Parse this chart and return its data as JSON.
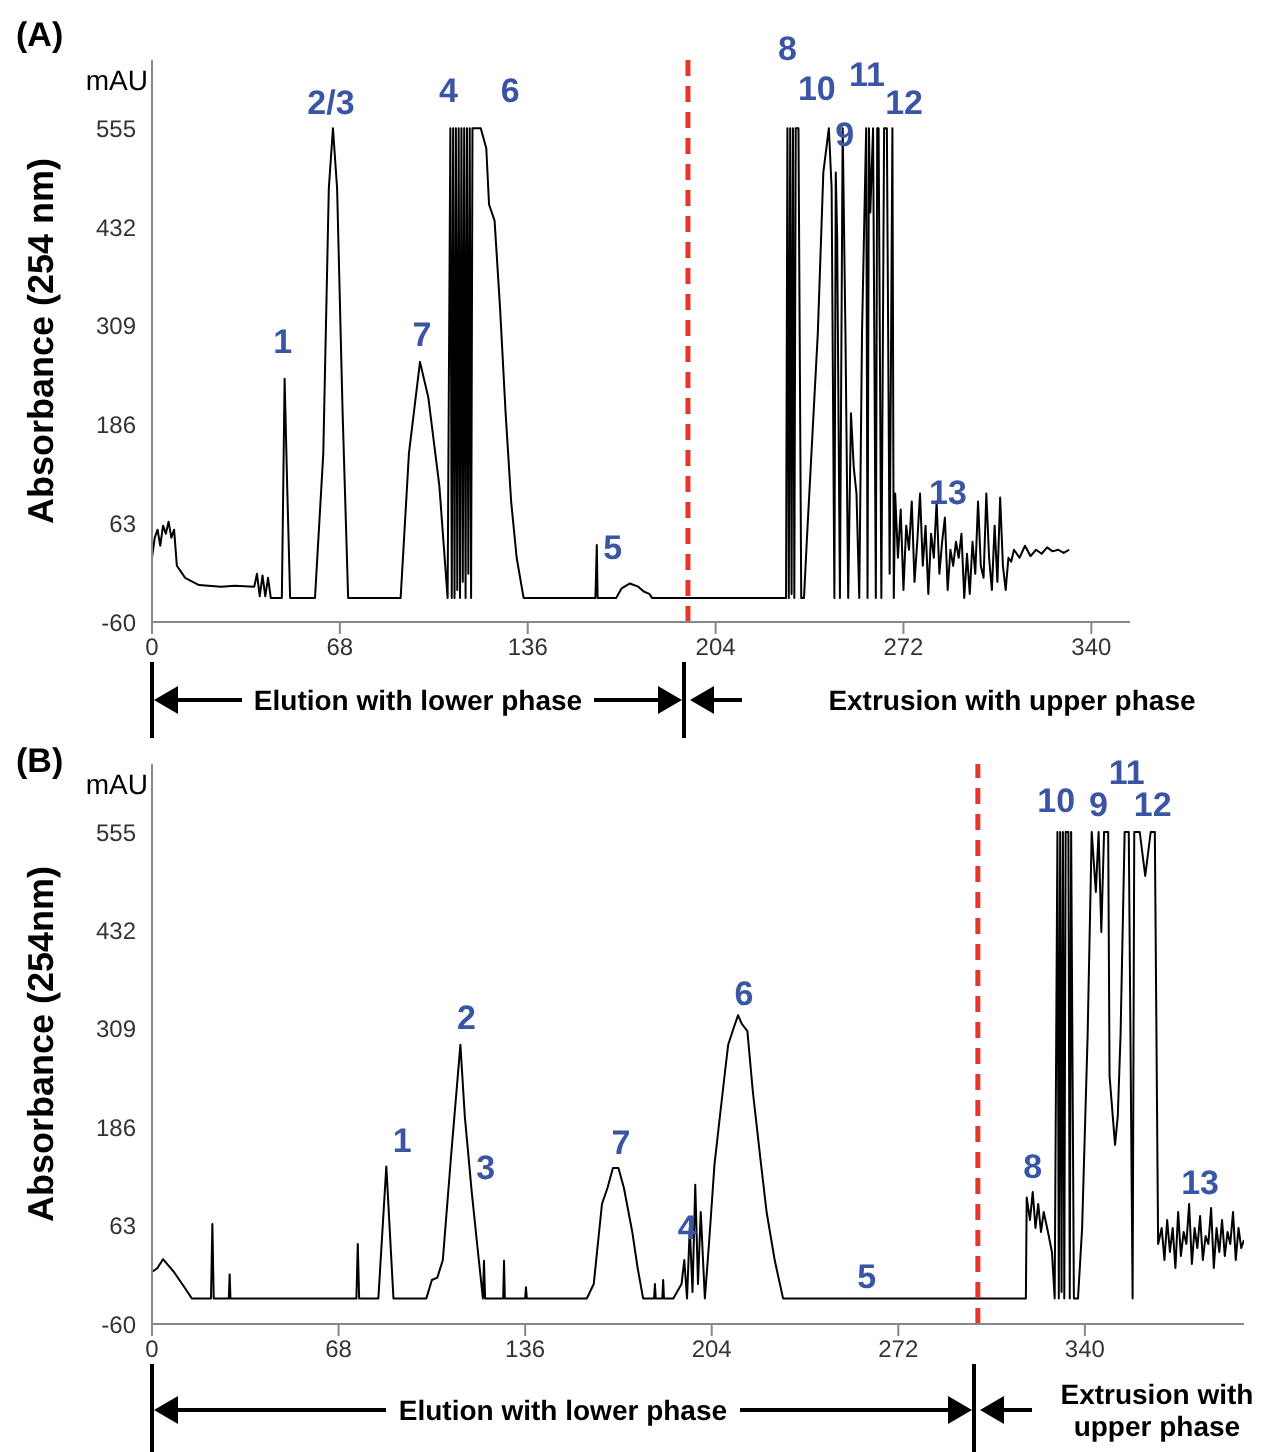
{
  "chart_data": [
    {
      "type": "line",
      "title": "(A)",
      "ylabel": "Absorbance (254 nm)",
      "xlim": [
        0,
        354
      ],
      "ylim": [
        -60,
        640
      ],
      "xticks": [
        0,
        68,
        136,
        204,
        272,
        340
      ],
      "yticks": [
        -60,
        63,
        186,
        309,
        432,
        555
      ],
      "ref_lines": [
        {
          "axis": "x",
          "value": 194,
          "color": "#e8362e",
          "line_style": "dashed"
        }
      ],
      "annotations": [
        "mAU",
        "Elution with lower phase",
        "Extrusion with upper phase",
        {
          "text": "1",
          "x": 48,
          "y": 243
        },
        {
          "text": "2/3",
          "x": 65.5,
          "y": 555
        },
        {
          "text": "4",
          "x": 108,
          "y": 555
        },
        {
          "text": "6",
          "x": 121,
          "y": 530
        },
        {
          "text": "7",
          "x": 97,
          "y": 264
        },
        {
          "text": "5",
          "x": 161,
          "y": 36
        },
        {
          "text": "8",
          "x": 230,
          "y": 555
        },
        {
          "text": "10",
          "x": 245,
          "y": 555
        },
        {
          "text": "9",
          "x": 250,
          "y": 555
        },
        {
          "text": "11",
          "x": 259.5,
          "y": 555
        },
        {
          "text": "12",
          "x": 265,
          "y": 555
        },
        {
          "text": "13",
          "x": 278,
          "y": 100
        }
      ],
      "x": [
        0,
        1,
        2,
        3,
        4,
        5,
        6,
        7,
        8,
        9,
        12,
        17,
        25,
        30,
        37,
        38,
        39,
        40,
        41,
        42,
        43,
        46,
        47,
        48,
        49,
        50,
        59,
        62,
        64,
        65.5,
        67,
        69,
        71,
        90,
        93,
        97,
        100,
        104,
        107,
        108,
        108.5,
        109,
        109.5,
        110,
        110.5,
        111,
        111.5,
        112,
        112.5,
        113,
        113.5,
        114,
        114.5,
        115,
        115.5,
        116,
        117,
        119,
        121,
        122,
        124,
        126,
        128,
        130,
        132,
        134.5,
        160.5,
        161,
        161.3,
        168,
        170,
        173,
        176,
        178,
        180,
        181,
        229.5,
        230,
        230.5,
        231,
        231.5,
        232,
        232.5,
        233,
        234,
        235,
        236,
        237,
        241,
        243,
        245,
        246,
        247,
        247.5,
        248,
        249,
        250,
        251,
        252,
        253,
        254,
        255,
        256,
        257,
        258.5,
        259,
        259.5,
        260,
        261,
        262,
        262.5,
        263,
        264,
        265,
        266,
        267,
        268,
        268.5,
        269,
        270,
        271,
        272,
        273,
        274,
        275,
        276,
        277,
        278,
        279,
        280,
        281,
        282,
        283,
        284,
        285,
        286,
        287,
        288,
        289,
        290,
        291,
        292,
        293,
        294,
        295,
        296,
        297,
        298,
        299,
        300,
        301,
        302,
        303,
        304,
        305,
        306,
        307,
        308,
        309,
        310,
        311,
        312,
        314,
        316,
        318,
        320,
        322,
        324,
        326,
        328,
        330,
        332
      ],
      "series": [
        {
          "color": "#000000",
          "values": [
            20,
            45,
            55,
            35,
            60,
            50,
            65,
            45,
            55,
            10,
            -5,
            -14,
            -16,
            -15,
            -16,
            0,
            -28,
            -2,
            -28,
            -5,
            -30,
            -30,
            -30,
            243,
            100,
            -30,
            -30,
            150,
            480,
            555,
            480,
            200,
            -30,
            -30,
            150,
            264,
            220,
            110,
            -30,
            555,
            -30,
            555,
            -30,
            555,
            -20,
            555,
            -30,
            555,
            -10,
            555,
            -30,
            555,
            0,
            555,
            -30,
            555,
            555,
            555,
            530,
            460,
            440,
            330,
            200,
            90,
            20,
            -30,
            -30,
            36,
            -30,
            -30,
            -18,
            -12,
            -16,
            -22,
            -25,
            -30,
            -30,
            555,
            -30,
            555,
            -25,
            555,
            -30,
            555,
            555,
            -30,
            -30,
            40,
            300,
            500,
            555,
            480,
            -30,
            500,
            420,
            -30,
            555,
            300,
            -30,
            200,
            133,
            100,
            -30,
            300,
            555,
            -30,
            555,
            450,
            555,
            -30,
            555,
            555,
            -30,
            555,
            555,
            0,
            555,
            -30,
            100,
            20,
            80,
            -20,
            60,
            30,
            90,
            -10,
            40,
            100,
            10,
            60,
            -25,
            50,
            20,
            90,
            0,
            40,
            70,
            -20,
            30,
            10,
            40,
            20,
            50,
            -30,
            25,
            -25,
            40,
            0,
            90,
            10,
            -5,
            100,
            20,
            -20,
            60,
            -10,
            95,
            10,
            -20,
            20,
            15,
            30,
            20,
            35,
            22,
            30,
            25,
            33,
            28,
            30,
            26,
            30
          ]
        }
      ]
    },
    {
      "type": "line",
      "title": "(B)",
      "ylabel": "Absorbance (254nm)",
      "xlim": [
        0,
        398
      ],
      "ylim": [
        -60,
        640
      ],
      "xticks": [
        0,
        68,
        136,
        204,
        272,
        340
      ],
      "yticks": [
        -60,
        63,
        186,
        309,
        432,
        555
      ],
      "ref_lines": [
        {
          "axis": "x",
          "value": 301,
          "color": "#e8362e",
          "line_style": "dashed"
        }
      ],
      "annotations": [
        "mAU",
        "Elution with lower phase",
        "Extrusion with upper phase",
        {
          "text": "1",
          "x": 85.4,
          "y": 137
        },
        {
          "text": "2",
          "x": 112.4,
          "y": 289
        },
        {
          "text": "3",
          "x": 116.5,
          "y": 106
        },
        {
          "text": "7",
          "x": 168,
          "y": 135
        },
        {
          "text": "4",
          "x": 198,
          "y": 114
        },
        {
          "text": "6",
          "x": 213.6,
          "y": 326
        },
        {
          "text": "5",
          "x": 260.5,
          "y": -28
        },
        {
          "text": "8",
          "x": 321,
          "y": 105
        },
        {
          "text": "10",
          "x": 331,
          "y": 555
        },
        {
          "text": "9",
          "x": 345,
          "y": 555
        },
        {
          "text": "11",
          "x": 356,
          "y": 555
        },
        {
          "text": "12",
          "x": 364,
          "y": 555
        },
        {
          "text": "13",
          "x": 382,
          "y": 75
        }
      ],
      "x": [
        0,
        2,
        4,
        8,
        12,
        14.5,
        21.5,
        22,
        22.5,
        28,
        28.3,
        28.6,
        74.5,
        75,
        75.5,
        82.5,
        85.4,
        88,
        100,
        102,
        104,
        106,
        109,
        112.4,
        114,
        116.5,
        118.5,
        120.6,
        121,
        121.4,
        128,
        128.3,
        128.6,
        136,
        136.3,
        136.6,
        158.5,
        161,
        164,
        166,
        168,
        170,
        172,
        175,
        177,
        179,
        183,
        183.3,
        183.6,
        186,
        186.3,
        186.6,
        190,
        193,
        194,
        195,
        196,
        197,
        198,
        199,
        200,
        201.5,
        203,
        205,
        207,
        209,
        210,
        212,
        213.6,
        215,
        217,
        219,
        222,
        224,
        227,
        230,
        318.5,
        318.8,
        320,
        321,
        322,
        323,
        324,
        325,
        326.5,
        328,
        329,
        330,
        330.5,
        331,
        331.5,
        332,
        332.5,
        333,
        334,
        334.5,
        335,
        336,
        337.5,
        339,
        341,
        342.5,
        344,
        345,
        346,
        347,
        348.5,
        349,
        351,
        352,
        353,
        354.5,
        356,
        357.4,
        358,
        360,
        362,
        364,
        365.5,
        366.7,
        368,
        369,
        370,
        371,
        372,
        373,
        374,
        375,
        376,
        377,
        378,
        379,
        380,
        381,
        382,
        383,
        384,
        385,
        386,
        387,
        388,
        389,
        390,
        391,
        392,
        393,
        394,
        395,
        396,
        397,
        398
      ],
      "series": [
        {
          "color": "#000000",
          "values": [
            5,
            10,
            21,
            5,
            -15,
            -28,
            -28,
            65,
            -28,
            -28,
            2,
            -28,
            -28,
            40,
            -28,
            -28,
            137,
            -28,
            -28,
            -5,
            -2,
            20,
            150,
            289,
            200,
            106,
            40,
            -28,
            19,
            -28,
            -28,
            19,
            -28,
            -28,
            -14,
            -28,
            -28,
            -10,
            90,
            110,
            135,
            135,
            110,
            56,
            10,
            -28,
            -28,
            -10,
            -28,
            -28,
            -5,
            -28,
            -28,
            -10,
            20,
            -28,
            60,
            -20,
            114,
            -10,
            80,
            -28,
            40,
            139,
            200,
            260,
            289,
            310,
            326,
            315,
            306,
            230,
            139,
            80,
            19,
            -28,
            -28,
            98,
            70,
            105,
            60,
            90,
            55,
            80,
            56,
            30,
            -28,
            555,
            -28,
            555,
            -20,
            555,
            -28,
            555,
            555,
            -28,
            555,
            -28,
            -28,
            60,
            300,
            555,
            480,
            555,
            430,
            555,
            555,
            250,
            164,
            200,
            300,
            555,
            555,
            -28,
            555,
            555,
            500,
            555,
            555,
            40,
            60,
            20,
            70,
            30,
            60,
            10,
            80,
            25,
            55,
            40,
            90,
            15,
            60,
            35,
            75,
            20,
            50,
            40,
            85,
            10,
            60,
            30,
            70,
            25,
            55,
            40,
            80,
            20,
            60,
            35,
            45
          ]
        }
      ]
    }
  ]
}
